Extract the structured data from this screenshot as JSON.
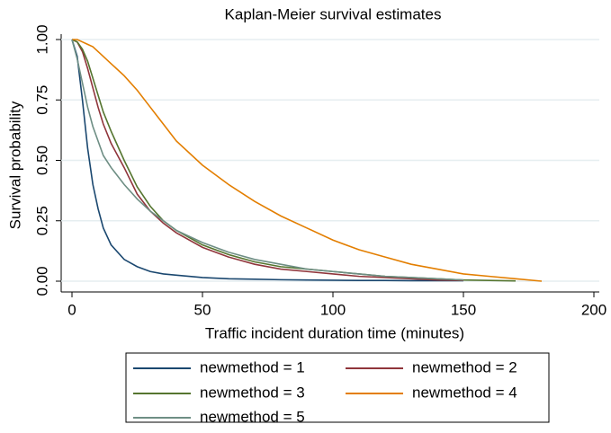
{
  "chart_data": {
    "type": "line",
    "title": "Kaplan-Meier survival estimates",
    "x_label": "Traffic incident duration time (minutes)",
    "y_label": "Survival probability",
    "x": [
      0,
      2,
      4,
      6,
      8,
      10,
      12,
      15,
      20,
      25,
      30,
      35,
      40,
      50,
      60,
      70,
      80,
      90,
      100,
      110,
      120,
      130,
      140,
      150,
      160,
      170,
      180
    ],
    "series": [
      {
        "name": "newmethod = 1",
        "color": "#1a476f",
        "values": [
          1.0,
          0.93,
          0.75,
          0.55,
          0.4,
          0.3,
          0.22,
          0.15,
          0.09,
          0.06,
          0.04,
          0.03,
          0.025,
          0.015,
          0.01,
          0.008,
          0.006,
          0.005,
          0.004,
          0.003,
          0.003,
          0.002,
          0.002,
          0.002,
          null,
          null,
          null
        ]
      },
      {
        "name": "newmethod = 2",
        "color": "#90353b",
        "values": [
          1.0,
          0.99,
          0.95,
          0.88,
          0.8,
          0.72,
          0.65,
          0.57,
          0.47,
          0.36,
          0.29,
          0.24,
          0.2,
          0.14,
          0.1,
          0.07,
          0.05,
          0.04,
          0.03,
          0.02,
          0.015,
          0.01,
          0.005,
          0.003,
          null,
          null,
          null
        ]
      },
      {
        "name": "newmethod = 3",
        "color": "#55752f",
        "values": [
          1.0,
          0.99,
          0.96,
          0.91,
          0.84,
          0.77,
          0.7,
          0.62,
          0.5,
          0.39,
          0.31,
          0.25,
          0.21,
          0.15,
          0.11,
          0.08,
          0.06,
          0.05,
          0.04,
          0.03,
          0.02,
          0.015,
          0.01,
          0.005,
          0.003,
          0.001,
          null
        ]
      },
      {
        "name": "newmethod = 4",
        "color": "#e37e00",
        "values": [
          1.0,
          1.0,
          0.99,
          0.98,
          0.97,
          0.95,
          0.93,
          0.9,
          0.85,
          0.79,
          0.72,
          0.65,
          0.58,
          0.48,
          0.4,
          0.33,
          0.27,
          0.22,
          0.17,
          0.13,
          0.1,
          0.07,
          0.05,
          0.03,
          0.02,
          0.01,
          0.0
        ]
      },
      {
        "name": "newmethod = 5",
        "color": "#6e8e84",
        "values": [
          1.0,
          0.92,
          0.82,
          0.72,
          0.64,
          0.58,
          0.52,
          0.47,
          0.4,
          0.34,
          0.29,
          0.25,
          0.21,
          0.16,
          0.12,
          0.09,
          0.07,
          0.05,
          0.04,
          0.03,
          0.02,
          0.015,
          0.01,
          0.005,
          null,
          null,
          null
        ]
      }
    ],
    "xlim": [
      0,
      200
    ],
    "ylim": [
      0,
      1
    ],
    "xticks": [
      0,
      50,
      100,
      150,
      200
    ],
    "yticks": [
      {
        "value": 0,
        "label": "0.00"
      },
      {
        "value": 0.25,
        "label": "0.25"
      },
      {
        "value": 0.5,
        "label": "0.50"
      },
      {
        "value": 0.75,
        "label": "0.75"
      },
      {
        "value": 1,
        "label": "1.00"
      }
    ],
    "grid": true
  }
}
